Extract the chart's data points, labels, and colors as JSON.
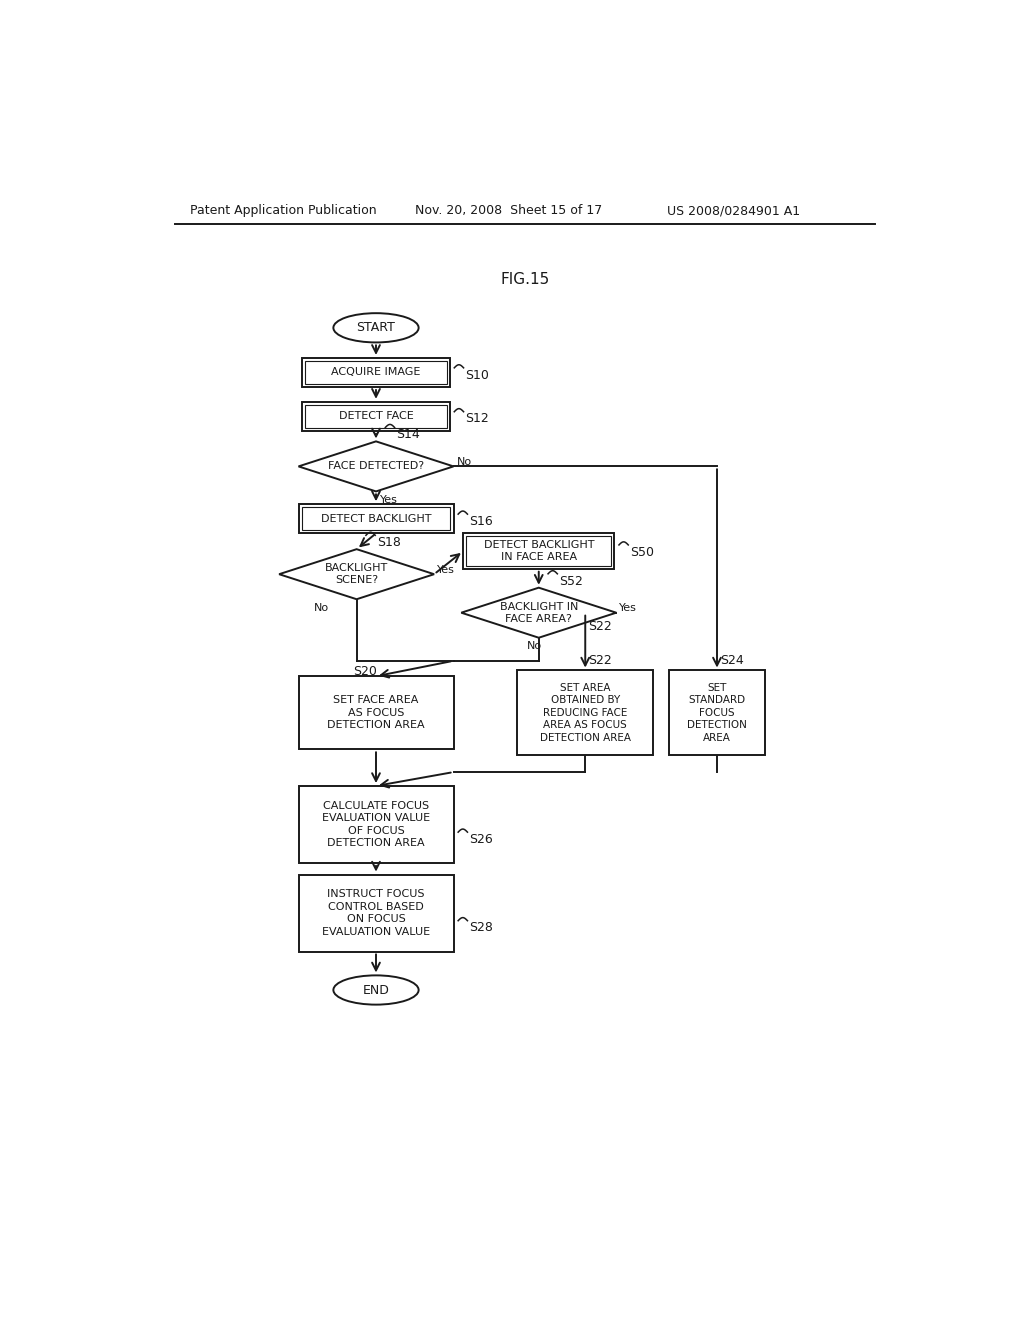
{
  "title": "FIG.15",
  "header_left": "Patent Application Publication",
  "header_mid": "Nov. 20, 2008  Sheet 15 of 17",
  "header_right": "US 2008/0284901 A1",
  "bg_color": "#ffffff",
  "line_color": "#1a1a1a",
  "text_color": "#1a1a1a",
  "fig_w": 10.24,
  "fig_h": 13.2,
  "dpi": 100
}
